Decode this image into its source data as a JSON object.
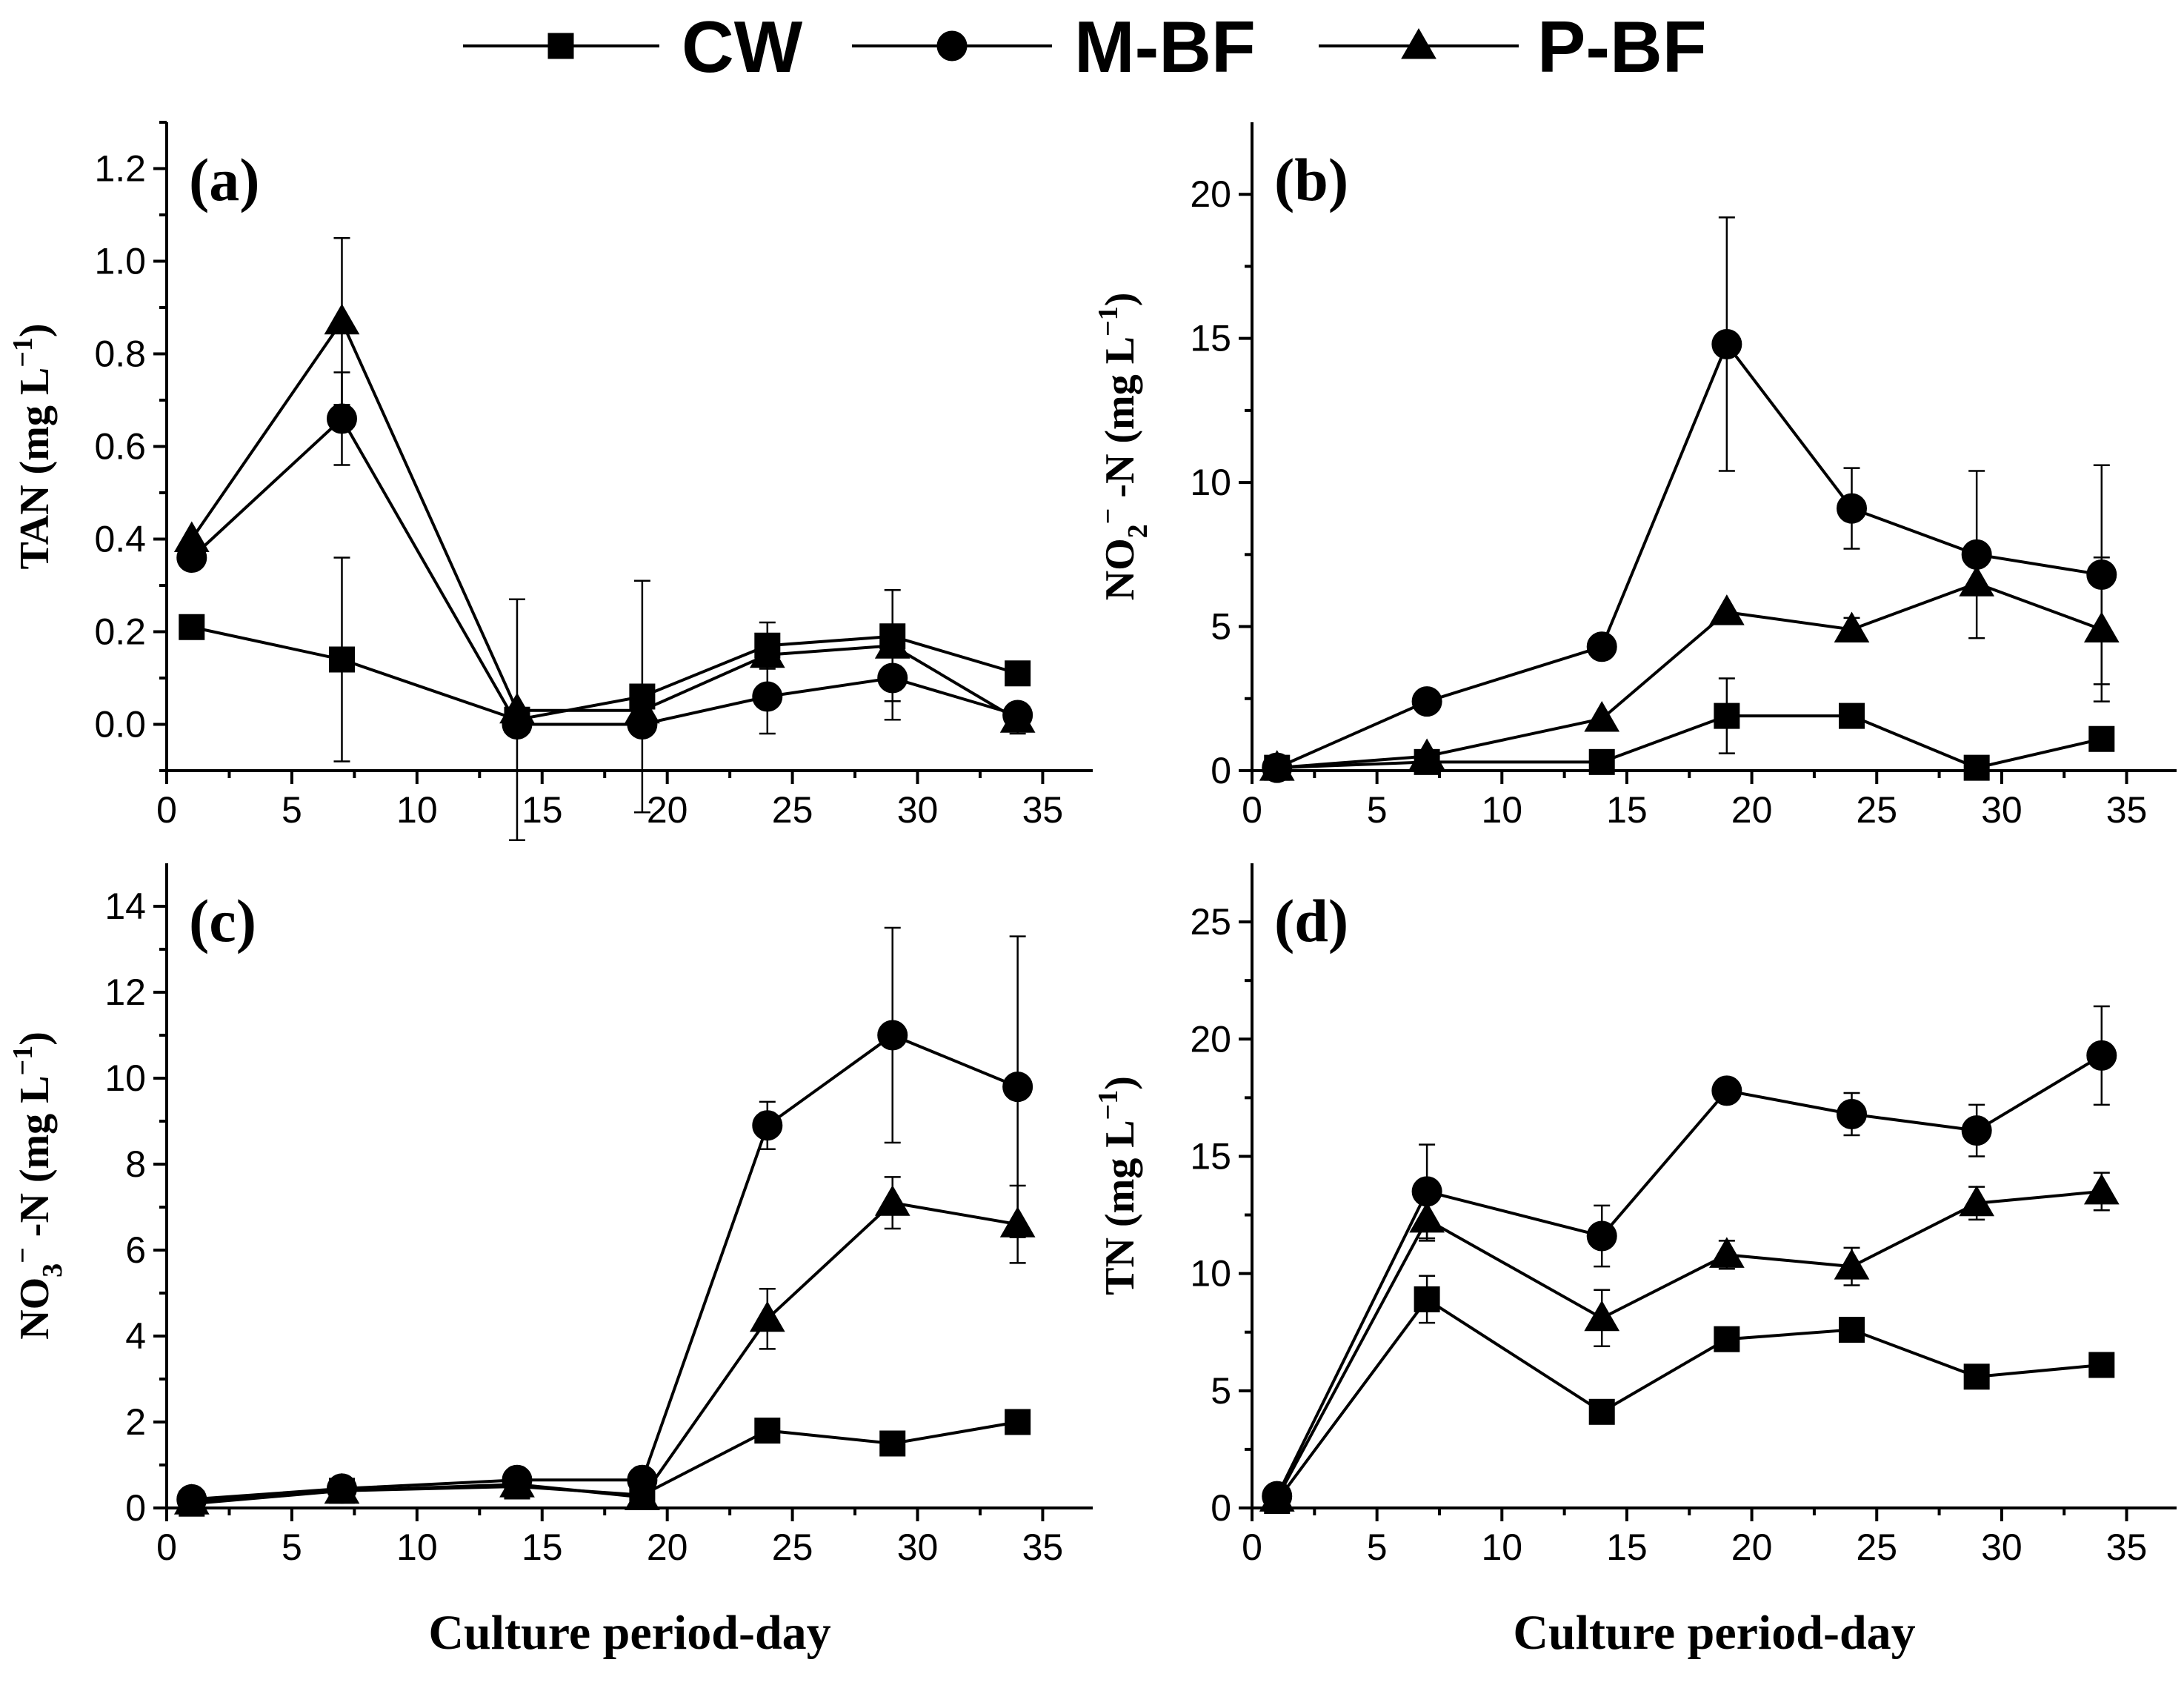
{
  "legend": [
    {
      "name": "CW",
      "marker": "square"
    },
    {
      "name": "M-BF",
      "marker": "circle"
    },
    {
      "name": "P-BF",
      "marker": "triangle"
    }
  ],
  "chart_data": [
    {
      "type": "line",
      "panel_label": "(a)",
      "ylabel": "TAN (mg L⁻¹)",
      "ylabel_parts": [
        "TAN (mg L",
        "−1",
        ")"
      ],
      "xlabel": "",
      "xlim": [
        0,
        37
      ],
      "ylim": [
        -0.1,
        1.3
      ],
      "xticks": [
        0,
        5,
        10,
        15,
        20,
        25,
        30,
        35
      ],
      "yticks": [
        0.0,
        0.2,
        0.4,
        0.6,
        0.8,
        1.0,
        1.2
      ],
      "ytick_labels": [
        "0.0",
        "0.2",
        "0.4",
        "0.6",
        "0.8",
        "1.0",
        "1.2"
      ],
      "x": [
        1,
        7,
        14,
        19,
        24,
        29,
        34
      ],
      "series": [
        {
          "name": "CW",
          "marker": "square",
          "values": [
            0.21,
            0.14,
            0.01,
            0.06,
            0.17,
            0.19,
            0.11
          ],
          "errors": [
            0.0,
            0.22,
            0.26,
            0.25,
            0.05,
            0.0,
            0.0
          ]
        },
        {
          "name": "M-BF",
          "marker": "circle",
          "values": [
            0.36,
            0.66,
            0.0,
            0.0,
            0.06,
            0.1,
            0.02
          ],
          "errors": [
            0.0,
            0.1,
            0.0,
            0.0,
            0.08,
            0.09,
            0.0
          ]
        },
        {
          "name": "P-BF",
          "marker": "triangle",
          "values": [
            0.4,
            0.87,
            0.03,
            0.03,
            0.15,
            0.17,
            0.01
          ],
          "errors": [
            0.0,
            0.18,
            0.0,
            0.0,
            0.0,
            0.12,
            0.03
          ]
        }
      ]
    },
    {
      "type": "line",
      "panel_label": "(b)",
      "ylabel": "NO₂⁻-N (mg L⁻¹)",
      "ylabel_parts": [
        "NO",
        "2",
        "−",
        " -N (mg L",
        "−1",
        ")"
      ],
      "xlabel": "",
      "xlim": [
        0,
        37
      ],
      "ylim": [
        0,
        22.5
      ],
      "xticks": [
        0,
        5,
        10,
        15,
        20,
        25,
        30,
        35
      ],
      "yticks": [
        0,
        5,
        10,
        15,
        20
      ],
      "ytick_labels": [
        "0",
        "5",
        "10",
        "15",
        "20"
      ],
      "x": [
        1,
        7,
        14,
        19,
        24,
        29,
        34
      ],
      "series": [
        {
          "name": "CW",
          "marker": "square",
          "values": [
            0.1,
            0.3,
            0.3,
            1.9,
            1.9,
            0.1,
            1.1
          ],
          "errors": [
            0.0,
            0.0,
            0.0,
            1.3,
            0.0,
            0.0,
            0.0
          ]
        },
        {
          "name": "M-BF",
          "marker": "circle",
          "values": [
            0.1,
            2.4,
            4.3,
            14.8,
            9.1,
            7.5,
            6.8
          ],
          "errors": [
            0.0,
            0.0,
            0.0,
            4.4,
            1.4,
            2.9,
            3.8
          ]
        },
        {
          "name": "P-BF",
          "marker": "triangle",
          "values": [
            0.1,
            0.5,
            1.8,
            5.5,
            4.9,
            6.5,
            4.9
          ],
          "errors": [
            0.0,
            0.0,
            0.0,
            0.0,
            0.4,
            0.0,
            2.5
          ]
        }
      ]
    },
    {
      "type": "line",
      "panel_label": "(c)",
      "ylabel": "NO₃⁻-N (mg L⁻¹)",
      "ylabel_parts": [
        "NO",
        "3",
        "−",
        " -N (mg L",
        "−1",
        ")"
      ],
      "xlabel": "Culture period-day",
      "xlim": [
        0,
        37
      ],
      "ylim": [
        0,
        15
      ],
      "xticks": [
        0,
        5,
        10,
        15,
        20,
        25,
        30,
        35
      ],
      "yticks": [
        0,
        2,
        4,
        6,
        8,
        10,
        12,
        14
      ],
      "ytick_labels": [
        "0",
        "2",
        "4",
        "6",
        "8",
        "10",
        "12",
        "14"
      ],
      "x": [
        1,
        7,
        14,
        19,
        24,
        29,
        34
      ],
      "series": [
        {
          "name": "CW",
          "marker": "square",
          "values": [
            0.1,
            0.4,
            0.5,
            0.3,
            1.8,
            1.5,
            2.0
          ],
          "errors": [
            0.0,
            0.0,
            0.0,
            0.0,
            0.0,
            0.0,
            0.0
          ]
        },
        {
          "name": "M-BF",
          "marker": "circle",
          "values": [
            0.2,
            0.45,
            0.65,
            0.65,
            8.9,
            11.0,
            9.8
          ],
          "errors": [
            0.0,
            0.0,
            0.0,
            0.0,
            0.55,
            2.5,
            3.5
          ]
        },
        {
          "name": "P-BF",
          "marker": "triangle",
          "values": [
            0.15,
            0.4,
            0.55,
            0.25,
            4.4,
            7.1,
            6.6
          ],
          "errors": [
            0.0,
            0.0,
            0.0,
            0.0,
            0.7,
            0.6,
            0.9
          ]
        }
      ]
    },
    {
      "type": "line",
      "panel_label": "(d)",
      "ylabel": "TN (mg L⁻¹)",
      "ylabel_parts": [
        "TN (mg L",
        "−1",
        ")"
      ],
      "xlabel": "Culture period-day",
      "xlim": [
        0,
        37
      ],
      "ylim": [
        0,
        27.5
      ],
      "xticks": [
        0,
        5,
        10,
        15,
        20,
        25,
        30,
        35
      ],
      "yticks": [
        0,
        5,
        10,
        15,
        20,
        25
      ],
      "ytick_labels": [
        "0",
        "5",
        "10",
        "15",
        "20",
        "25"
      ],
      "x": [
        1,
        7,
        14,
        19,
        24,
        29,
        34
      ],
      "series": [
        {
          "name": "CW",
          "marker": "square",
          "values": [
            0.3,
            8.9,
            4.1,
            7.2,
            7.6,
            5.6,
            6.1
          ],
          "errors": [
            0.0,
            1.0,
            0.0,
            0.0,
            0.0,
            0.0,
            0.0
          ]
        },
        {
          "name": "M-BF",
          "marker": "circle",
          "values": [
            0.5,
            13.5,
            11.6,
            17.8,
            16.8,
            16.1,
            19.3
          ],
          "errors": [
            0.0,
            2.0,
            1.3,
            0.0,
            0.9,
            1.1,
            2.1
          ]
        },
        {
          "name": "P-BF",
          "marker": "triangle",
          "values": [
            0.4,
            12.3,
            8.1,
            10.8,
            10.3,
            13.0,
            13.5
          ],
          "errors": [
            0.0,
            0.9,
            1.2,
            0.6,
            0.8,
            0.7,
            0.8
          ]
        }
      ]
    }
  ]
}
